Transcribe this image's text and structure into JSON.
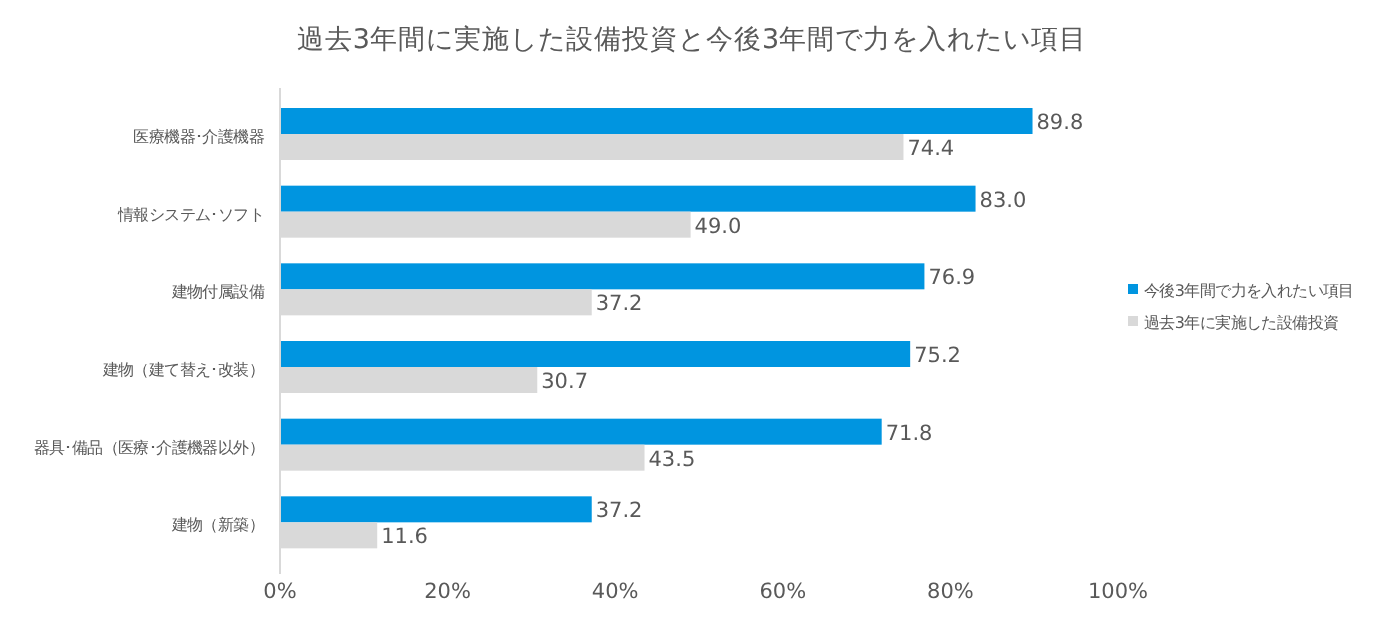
{
  "chart_data": {
    "type": "bar",
    "orientation": "horizontal",
    "title": "過去3年間に実施した設備投資と今後3年間で力を入れたい項目",
    "categories": [
      "医療機器･介護機器",
      "情報システム･ソフト",
      "建物付属設備",
      "建物（建て替え･改装）",
      "器具･備品（医療･介護機器以外）",
      "建物（新築）"
    ],
    "series": [
      {
        "name": "今後3年間で力を入れたい項目",
        "color": "#0095e0",
        "values": [
          89.8,
          83.0,
          76.9,
          75.2,
          71.8,
          37.2
        ],
        "value_labels": [
          "89.8",
          "83.0",
          "76.9",
          "75.2",
          "71.8",
          "37.2"
        ]
      },
      {
        "name": "過去3年に実施した設備投資",
        "color": "#d9d9d9",
        "values": [
          74.4,
          49.0,
          37.2,
          30.7,
          43.5,
          11.6
        ],
        "value_labels": [
          "74.4",
          "49.0",
          "37.2",
          "30.7",
          "43.5",
          "11.6"
        ]
      }
    ],
    "xlim": [
      0,
      100
    ],
    "xticks": [
      {
        "value": 0,
        "label": "0%"
      },
      {
        "value": 20,
        "label": "20%"
      },
      {
        "value": 40,
        "label": "40%"
      },
      {
        "value": 60,
        "label": "60%"
      },
      {
        "value": 80,
        "label": "80%"
      },
      {
        "value": 100,
        "label": "100%"
      }
    ],
    "grid": false,
    "legend": "right"
  }
}
